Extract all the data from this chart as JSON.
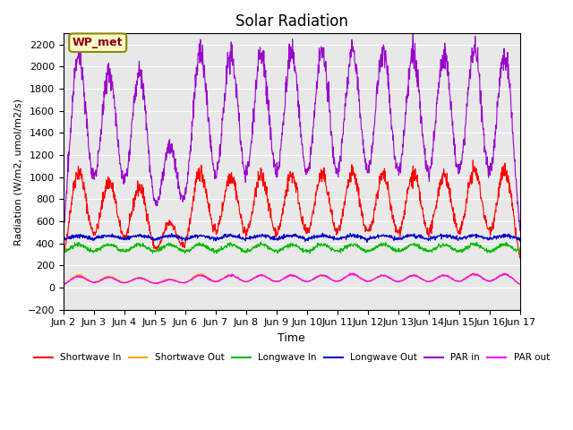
{
  "title": "Solar Radiation",
  "ylabel": "Radiation (W/m2, umol/m2/s)",
  "xlabel": "Time",
  "ylim": [
    -200,
    2300
  ],
  "yticks": [
    -200,
    0,
    200,
    400,
    600,
    800,
    1000,
    1200,
    1400,
    1600,
    1800,
    2000,
    2200
  ],
  "x_tick_positions": [
    0,
    1,
    2,
    3,
    4,
    5,
    6,
    7,
    8,
    9,
    10,
    11,
    12,
    13,
    14,
    15
  ],
  "x_labels": [
    "Jun 2",
    "Jun 3",
    "Jun 4",
    "Jun 5",
    "Jun 6",
    "Jun 7",
    "Jun 8",
    "Jun 9",
    "Jun 10",
    "Jun 11",
    "Jun 12",
    "Jun 13",
    "Jun 14",
    "Jun 15",
    "Jun 16",
    "Jun 17"
  ],
  "annotation_text": "WP_met",
  "annotation_color": "#8B0000",
  "annotation_bg": "#FFFACD",
  "bg_color": "#E8E8E8",
  "line_colors": {
    "sw_in": "#FF0000",
    "sw_out": "#FFA500",
    "lw_in": "#00BB00",
    "lw_out": "#0000CC",
    "par_in": "#9900CC",
    "par_out": "#FF00FF"
  },
  "legend_labels": [
    "Shortwave In",
    "Shortwave Out",
    "Longwave In",
    "Longwave Out",
    "PAR in",
    "PAR out"
  ],
  "n_days": 15,
  "pts_per_day": 96
}
